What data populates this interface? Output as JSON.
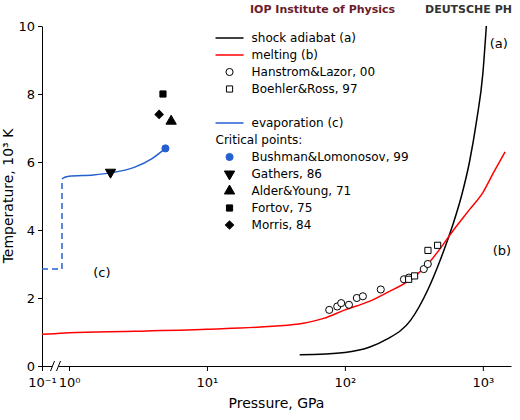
{
  "header": [
    "IOP Institute of Physics",
    "DEUTSCHE PH"
  ],
  "chart_data": {
    "type": "line",
    "x_label": "Pressure, GPa",
    "y_label": "Temperature, 10³ K",
    "log": "x",
    "grid": false,
    "legend": "top",
    "xlim": [
      0.1,
      1600
    ],
    "ylim": [
      0,
      10
    ],
    "xticks": [
      {
        "value": 0.1,
        "label": "10⁻¹"
      },
      {
        "value": 1,
        "label": "10⁰"
      },
      {
        "value": 10,
        "label": "10¹"
      },
      {
        "value": 100,
        "label": "10²"
      },
      {
        "value": 1000,
        "label": "10³"
      }
    ],
    "yticks": [
      0,
      2,
      4,
      6,
      8,
      10
    ],
    "series": [
      {
        "name": "shock adiabat (a)",
        "type": "line",
        "color": "#000000",
        "line_style": "solid",
        "x": [
          47,
          100,
          150,
          200,
          300,
          400,
          500,
          600,
          700,
          800,
          900,
          1000,
          1060
        ],
        "values": [
          0.33,
          0.4,
          0.55,
          0.78,
          1.35,
          2.25,
          3.2,
          4.1,
          5.0,
          6.0,
          7.2,
          8.6,
          10
        ]
      },
      {
        "name": "melting (b)",
        "type": "line",
        "color": "#ff0000",
        "line_style": "solid",
        "x": [
          0.1,
          0.3,
          1,
          3,
          10,
          30,
          50,
          70,
          100,
          150,
          200,
          300,
          400,
          500,
          600,
          800,
          1000,
          1200,
          1450
        ],
        "values": [
          0.93,
          0.95,
          0.98,
          1.02,
          1.08,
          1.17,
          1.26,
          1.4,
          1.65,
          1.9,
          2.15,
          2.55,
          3.0,
          3.5,
          3.95,
          4.6,
          5.1,
          5.7,
          6.3
        ]
      },
      {
        "name": "Hanstrom&Lazor, 00",
        "type": "scatter",
        "color": "#000000",
        "marker": "circle-open",
        "x": [
          77,
          88,
          94,
          107,
          122,
          135,
          182,
          268,
          291,
          373,
          399
        ],
        "values": [
          1.65,
          1.75,
          1.85,
          1.8,
          2.0,
          2.05,
          2.25,
          2.55,
          2.6,
          2.85,
          3.0
        ]
      },
      {
        "name": "Boehler&Ross, 97",
        "type": "scatter",
        "color": "#000000",
        "marker": "square-open",
        "x": [
          290,
          320,
          400,
          470
        ],
        "values": [
          2.55,
          2.65,
          3.4,
          3.55
        ]
      },
      {
        "name": "evaporation (c)",
        "type": "line",
        "color": "#2560d0",
        "line_style": "solid",
        "x": [
          0.55,
          0.7,
          1,
          1.5,
          2,
          3,
          4,
          5
        ],
        "values": [
          5.5,
          5.55,
          5.58,
          5.62,
          5.68,
          5.85,
          6.1,
          6.4
        ]
      },
      {
        "type": "line",
        "color": "#2560d0",
        "line_style": "dashed",
        "x": [
          0.1,
          0.55,
          0.55
        ],
        "values": [
          2.85,
          2.85,
          5.5
        ]
      }
    ],
    "critical_points": {
      "title": "Critical points:",
      "series": [
        {
          "name": "Bushman&Lomonosov, 99",
          "type": "scatter",
          "color": "#2560d0",
          "marker": "circle",
          "x": [
            5.0
          ],
          "values": [
            6.4
          ]
        },
        {
          "name": "Gathers, 86",
          "type": "scatter",
          "color": "#000000",
          "marker": "triangle-down",
          "x": [
            2.0
          ],
          "values": [
            5.7
          ]
        },
        {
          "name": "Alder&Young, 71",
          "type": "scatter",
          "color": "#000000",
          "marker": "triangle",
          "x": [
            5.5
          ],
          "values": [
            7.2
          ]
        },
        {
          "name": "Fortov, 75",
          "type": "scatter",
          "color": "#000000",
          "marker": "square",
          "x": [
            4.8
          ],
          "values": [
            8.0
          ]
        },
        {
          "name": "Morris, 84",
          "type": "scatter",
          "color": "#000000",
          "marker": "diamond",
          "x": [
            4.5
          ],
          "values": [
            7.4
          ]
        }
      ]
    },
    "annotations": [
      {
        "text": "(a)",
        "x": 1120,
        "y": 9.5
      },
      {
        "text": "(b)",
        "x": 1180,
        "y": 3.4
      },
      {
        "text": "(c)",
        "x": 1.5,
        "y": 2.75
      }
    ]
  }
}
